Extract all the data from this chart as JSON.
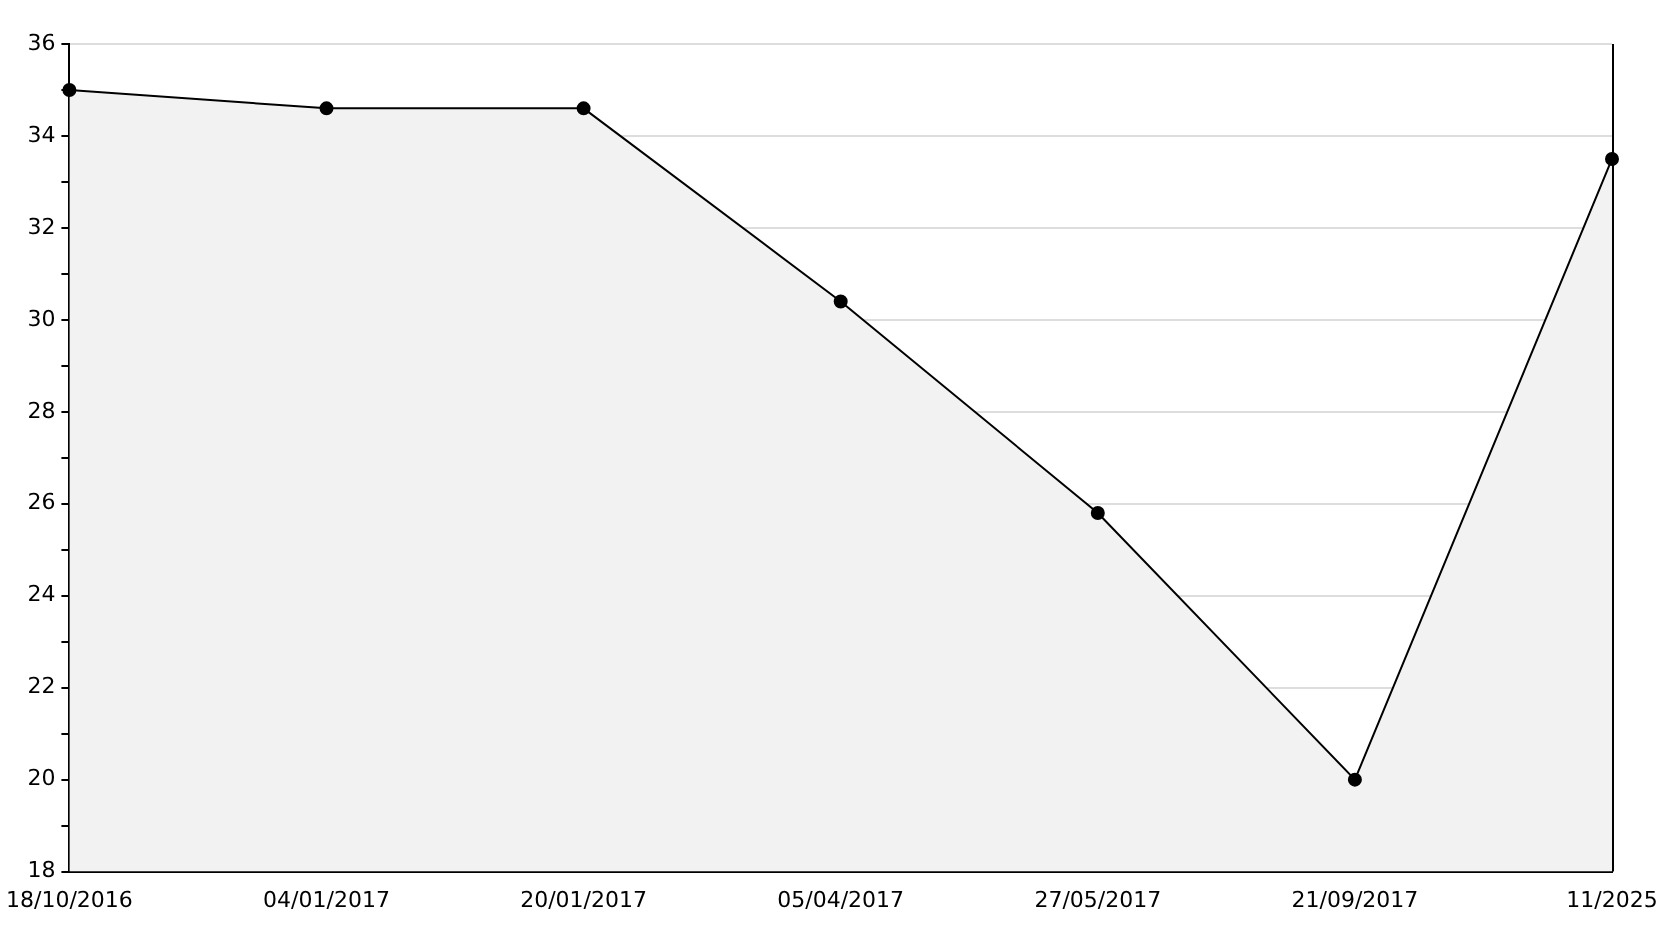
{
  "chart_data": {
    "type": "area",
    "categories": [
      "18/10/2016",
      "04/01/2017",
      "20/01/2017",
      "05/04/2017",
      "27/05/2017",
      "21/09/2017",
      "11/2025"
    ],
    "series": [
      {
        "color": "#000000",
        "values": [
          35.0,
          34.6,
          34.6,
          30.4,
          25.8,
          20.0,
          33.5
        ]
      }
    ],
    "ylim": [
      18,
      36
    ],
    "yticks": [
      18,
      {
        "value": 19,
        "label": null
      },
      20,
      {
        "value": 21,
        "label": null
      },
      22,
      {
        "value": 23,
        "label": null
      },
      24,
      {
        "value": 25,
        "label": null
      },
      26,
      {
        "value": 27,
        "label": null
      },
      28,
      {
        "value": 29,
        "label": null
      },
      30,
      {
        "value": 31,
        "label": null
      },
      32,
      {
        "value": 33,
        "label": null
      },
      34,
      {
        "value": 35,
        "label": null
      },
      36
    ],
    "grid": "y",
    "legend": false,
    "marker": "circle",
    "line_style": "solid"
  }
}
